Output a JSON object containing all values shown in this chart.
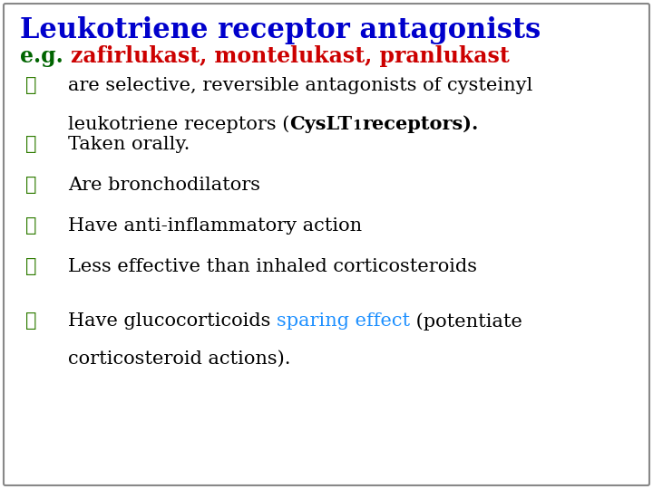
{
  "title": "Leukotriene receptor antagonists",
  "title_color": "#0000CC",
  "subtitle_eg": "e.g. ",
  "subtitle_eg_color": "#006400",
  "subtitle_drugs": "zafirlukast, montelukast, pranlukast",
  "subtitle_drugs_color": "#CC0000",
  "bg_color": "#FFFFFF",
  "border_color": "#888888",
  "bullet_color": "#2E7B00",
  "body_color": "#000000",
  "sparing_color": "#1E90FF",
  "font_size_title": 22,
  "font_size_subtitle": 17,
  "font_size_body": 15,
  "figwidth": 7.2,
  "figheight": 5.4,
  "dpi": 100
}
